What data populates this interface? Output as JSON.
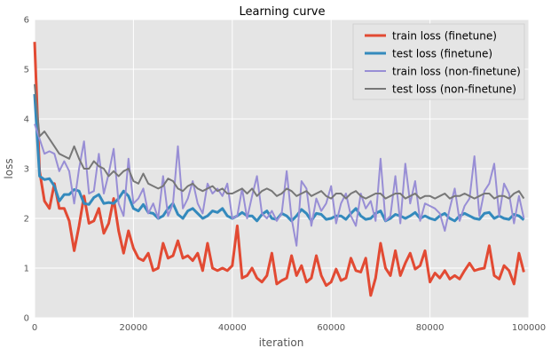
{
  "chart_data": {
    "type": "line",
    "title": "Learning curve",
    "xlabel": "iteration",
    "ylabel": "loss",
    "xlim": [
      0,
      100000
    ],
    "ylim": [
      0,
      6
    ],
    "x_ticks": [
      0,
      20000,
      40000,
      60000,
      80000,
      100000
    ],
    "y_ticks": [
      0,
      1,
      2,
      3,
      4,
      5,
      6
    ],
    "grid": true,
    "legend_position": "top-right",
    "background": "#e5e5e5",
    "series": [
      {
        "name": "train loss (finetune)",
        "color": "#e24a33",
        "width": 3,
        "x": [
          0,
          1000,
          2000,
          3000,
          4000,
          5000,
          6000,
          7000,
          8000,
          9000,
          10000,
          11000,
          12000,
          13000,
          14000,
          15000,
          16000,
          17000,
          18000,
          19000,
          20000,
          21000,
          22000,
          23000,
          24000,
          25000,
          26000,
          27000,
          28000,
          29000,
          30000,
          31000,
          32000,
          33000,
          34000,
          35000,
          36000,
          37000,
          38000,
          39000,
          40000,
          41000,
          42000,
          43000,
          44000,
          45000,
          46000,
          47000,
          48000,
          49000,
          50000,
          51000,
          52000,
          53000,
          54000,
          55000,
          56000,
          57000,
          58000,
          59000,
          60000,
          61000,
          62000,
          63000,
          64000,
          65000,
          66000,
          67000,
          68000,
          69000,
          70000,
          71000,
          72000,
          73000,
          74000,
          75000,
          76000,
          77000,
          78000,
          79000,
          80000,
          81000,
          82000,
          83000,
          84000,
          85000,
          86000,
          87000,
          88000,
          89000,
          90000,
          91000,
          92000,
          93000,
          94000,
          95000,
          96000,
          97000,
          98000,
          99000
        ],
        "y": [
          5.55,
          2.95,
          2.35,
          2.2,
          2.7,
          2.2,
          2.2,
          1.95,
          1.35,
          1.85,
          2.45,
          1.9,
          1.95,
          2.2,
          1.7,
          1.9,
          2.4,
          1.75,
          1.3,
          1.75,
          1.4,
          1.2,
          1.15,
          1.3,
          0.95,
          1.0,
          1.5,
          1.2,
          1.25,
          1.55,
          1.2,
          1.25,
          1.15,
          1.3,
          0.95,
          1.5,
          1.0,
          0.95,
          1.0,
          0.95,
          1.05,
          1.85,
          0.8,
          0.85,
          1.0,
          0.8,
          0.72,
          0.85,
          1.3,
          0.68,
          0.75,
          0.8,
          1.25,
          0.85,
          1.05,
          0.72,
          0.8,
          1.25,
          0.85,
          0.65,
          0.72,
          0.98,
          0.75,
          0.8,
          1.2,
          0.95,
          0.92,
          1.2,
          0.45,
          0.8,
          1.5,
          1.0,
          0.85,
          1.35,
          0.85,
          1.1,
          1.3,
          0.98,
          1.05,
          1.35,
          0.72,
          0.9,
          0.8,
          0.95,
          0.78,
          0.85,
          0.78,
          0.95,
          1.1,
          0.95,
          0.98,
          1.0,
          1.45,
          0.85,
          0.78,
          1.05,
          0.95,
          0.68,
          1.3,
          0.92
        ]
      },
      {
        "name": "test loss (finetune)",
        "color": "#348abd",
        "width": 3,
        "x": [
          0,
          1000,
          2000,
          3000,
          4000,
          5000,
          6000,
          7000,
          8000,
          9000,
          10000,
          11000,
          12000,
          13000,
          14000,
          15000,
          16000,
          17000,
          18000,
          19000,
          20000,
          21000,
          22000,
          23000,
          24000,
          25000,
          26000,
          27000,
          28000,
          29000,
          30000,
          31000,
          32000,
          33000,
          34000,
          35000,
          36000,
          37000,
          38000,
          39000,
          40000,
          41000,
          42000,
          43000,
          44000,
          45000,
          46000,
          47000,
          48000,
          49000,
          50000,
          51000,
          52000,
          53000,
          54000,
          55000,
          56000,
          57000,
          58000,
          59000,
          60000,
          61000,
          62000,
          63000,
          64000,
          65000,
          66000,
          67000,
          68000,
          69000,
          70000,
          71000,
          72000,
          73000,
          74000,
          75000,
          76000,
          77000,
          78000,
          79000,
          80000,
          81000,
          82000,
          83000,
          84000,
          85000,
          86000,
          87000,
          88000,
          89000,
          90000,
          91000,
          92000,
          93000,
          94000,
          95000,
          96000,
          97000,
          98000,
          99000
        ],
        "y": [
          4.5,
          2.85,
          2.78,
          2.8,
          2.65,
          2.35,
          2.48,
          2.48,
          2.58,
          2.55,
          2.3,
          2.28,
          2.42,
          2.48,
          2.3,
          2.32,
          2.3,
          2.4,
          2.55,
          2.45,
          2.2,
          2.15,
          2.28,
          2.12,
          2.1,
          2.0,
          2.05,
          2.2,
          2.3,
          2.08,
          2.0,
          2.15,
          2.2,
          2.1,
          2.0,
          2.05,
          2.15,
          2.12,
          2.2,
          2.05,
          2.0,
          2.05,
          2.12,
          2.05,
          2.05,
          1.95,
          2.08,
          2.15,
          2.0,
          1.98,
          2.1,
          2.05,
          1.95,
          2.05,
          2.18,
          2.1,
          1.95,
          2.1,
          2.08,
          1.98,
          2.0,
          2.05,
          2.05,
          1.98,
          2.1,
          2.2,
          2.05,
          1.98,
          2.0,
          2.1,
          2.15,
          1.95,
          2.0,
          2.08,
          2.05,
          2.0,
          2.05,
          2.12,
          2.0,
          2.05,
          2.0,
          1.97,
          2.05,
          2.1,
          2.0,
          1.95,
          2.05,
          2.1,
          2.05,
          2.0,
          1.98,
          2.1,
          2.12,
          2.0,
          2.05,
          2.0,
          1.98,
          2.08,
          2.05,
          1.97
        ]
      },
      {
        "name": "train loss (non-finetune)",
        "color": "#988ed5",
        "width": 2,
        "x": [
          0,
          1000,
          2000,
          3000,
          4000,
          5000,
          6000,
          7000,
          8000,
          9000,
          10000,
          11000,
          12000,
          13000,
          14000,
          15000,
          16000,
          17000,
          18000,
          19000,
          20000,
          21000,
          22000,
          23000,
          24000,
          25000,
          26000,
          27000,
          28000,
          29000,
          30000,
          31000,
          32000,
          33000,
          34000,
          35000,
          36000,
          37000,
          38000,
          39000,
          40000,
          41000,
          42000,
          43000,
          44000,
          45000,
          46000,
          47000,
          48000,
          49000,
          50000,
          51000,
          52000,
          53000,
          54000,
          55000,
          56000,
          57000,
          58000,
          59000,
          60000,
          61000,
          62000,
          63000,
          64000,
          65000,
          66000,
          67000,
          68000,
          69000,
          70000,
          71000,
          72000,
          73000,
          74000,
          75000,
          76000,
          77000,
          78000,
          79000,
          80000,
          81000,
          82000,
          83000,
          84000,
          85000,
          86000,
          87000,
          88000,
          89000,
          90000,
          91000,
          92000,
          93000,
          94000,
          95000,
          96000,
          97000,
          98000,
          99000
        ],
        "y": [
          3.9,
          3.6,
          3.3,
          3.35,
          3.3,
          2.95,
          3.15,
          2.95,
          2.3,
          3.0,
          3.55,
          2.5,
          2.55,
          3.3,
          2.5,
          2.9,
          3.4,
          2.3,
          2.05,
          3.2,
          2.3,
          2.4,
          2.6,
          2.1,
          2.3,
          2.0,
          2.85,
          2.05,
          2.3,
          3.45,
          2.2,
          2.4,
          2.75,
          2.3,
          2.1,
          2.7,
          2.5,
          2.6,
          2.45,
          2.7,
          2.0,
          2.05,
          2.6,
          2.0,
          2.45,
          2.85,
          2.1,
          2.0,
          2.15,
          1.95,
          2.1,
          2.95,
          2.0,
          1.45,
          2.75,
          2.6,
          1.85,
          2.4,
          2.15,
          2.3,
          2.65,
          1.9,
          2.3,
          2.5,
          2.05,
          1.85,
          2.5,
          2.2,
          2.35,
          1.95,
          3.2,
          1.95,
          2.05,
          2.85,
          1.9,
          3.1,
          2.3,
          2.75,
          1.95,
          2.3,
          2.25,
          2.2,
          2.1,
          1.75,
          2.2,
          2.6,
          1.95,
          2.25,
          2.4,
          3.25,
          2.05,
          2.55,
          2.7,
          3.1,
          2.05,
          2.7,
          2.5,
          1.9,
          2.45,
          2.0
        ]
      },
      {
        "name": "test loss (non-finetune)",
        "color": "#777777",
        "width": 2,
        "x": [
          0,
          1000,
          2000,
          3000,
          4000,
          5000,
          6000,
          7000,
          8000,
          9000,
          10000,
          11000,
          12000,
          13000,
          14000,
          15000,
          16000,
          17000,
          18000,
          19000,
          20000,
          21000,
          22000,
          23000,
          24000,
          25000,
          26000,
          27000,
          28000,
          29000,
          30000,
          31000,
          32000,
          33000,
          34000,
          35000,
          36000,
          37000,
          38000,
          39000,
          40000,
          41000,
          42000,
          43000,
          44000,
          45000,
          46000,
          47000,
          48000,
          49000,
          50000,
          51000,
          52000,
          53000,
          54000,
          55000,
          56000,
          57000,
          58000,
          59000,
          60000,
          61000,
          62000,
          63000,
          64000,
          65000,
          66000,
          67000,
          68000,
          69000,
          70000,
          71000,
          72000,
          73000,
          74000,
          75000,
          76000,
          77000,
          78000,
          79000,
          80000,
          81000,
          82000,
          83000,
          84000,
          85000,
          86000,
          87000,
          88000,
          89000,
          90000,
          91000,
          92000,
          93000,
          94000,
          95000,
          96000,
          97000,
          98000,
          99000
        ],
        "y": [
          4.7,
          3.65,
          3.75,
          3.6,
          3.45,
          3.3,
          3.25,
          3.2,
          3.45,
          3.2,
          3.0,
          3.0,
          3.15,
          3.05,
          3.0,
          2.85,
          2.95,
          2.85,
          2.95,
          3.0,
          2.75,
          2.7,
          2.9,
          2.7,
          2.65,
          2.6,
          2.65,
          2.8,
          2.75,
          2.6,
          2.55,
          2.65,
          2.7,
          2.6,
          2.55,
          2.6,
          2.65,
          2.55,
          2.6,
          2.5,
          2.5,
          2.55,
          2.6,
          2.5,
          2.6,
          2.45,
          2.55,
          2.6,
          2.55,
          2.45,
          2.5,
          2.6,
          2.55,
          2.45,
          2.5,
          2.55,
          2.45,
          2.5,
          2.55,
          2.45,
          2.4,
          2.5,
          2.5,
          2.4,
          2.5,
          2.55,
          2.45,
          2.4,
          2.45,
          2.5,
          2.5,
          2.4,
          2.45,
          2.5,
          2.5,
          2.4,
          2.45,
          2.5,
          2.4,
          2.45,
          2.45,
          2.4,
          2.45,
          2.5,
          2.4,
          2.45,
          2.45,
          2.5,
          2.45,
          2.4,
          2.45,
          2.5,
          2.5,
          2.4,
          2.45,
          2.45,
          2.4,
          2.5,
          2.55,
          2.4
        ]
      }
    ]
  }
}
